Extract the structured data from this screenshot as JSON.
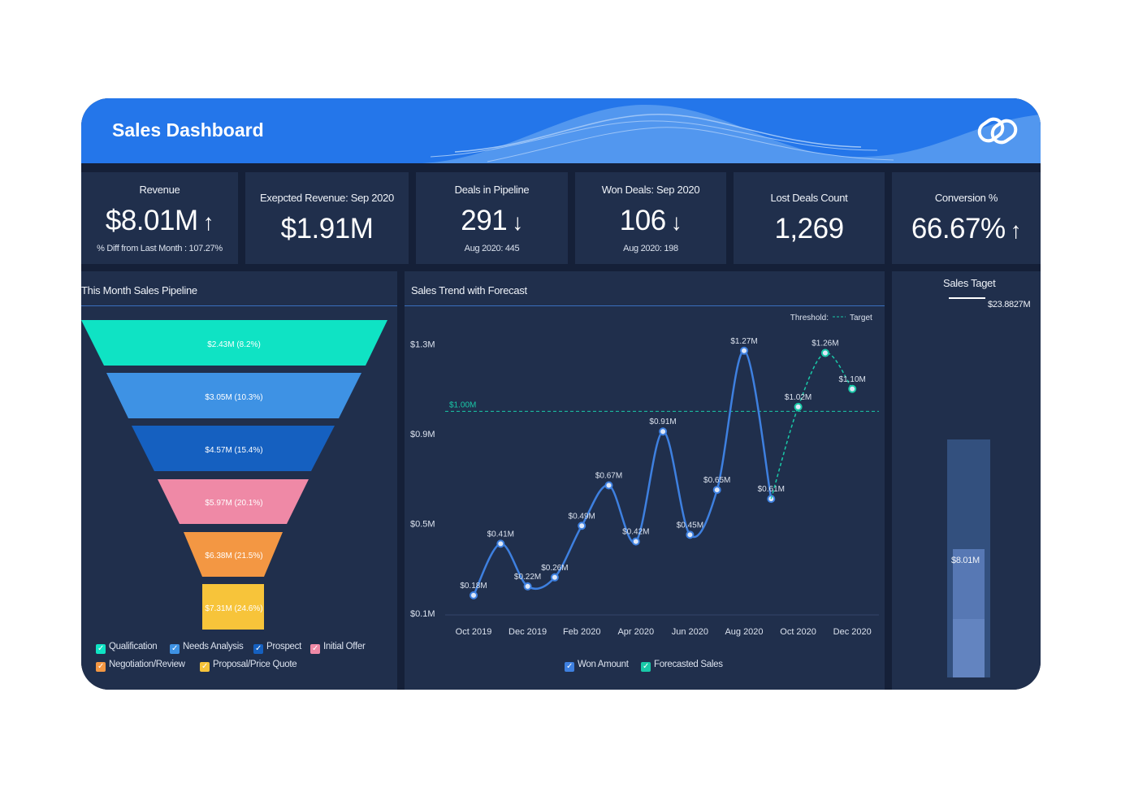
{
  "header": {
    "title": "Sales Dashboard",
    "logo_icon": "zoho-analytics-logo-icon"
  },
  "kpis": [
    {
      "label": "Revenue",
      "value": "$8.01M",
      "arrow": "↑",
      "sub": "% Diff from Last Month : 107.27%"
    },
    {
      "label": "Exepcted Revenue: Sep 2020",
      "value": "$1.91M"
    },
    {
      "label": "Deals in Pipeline",
      "value": "291",
      "arrow": "↓",
      "sub": "Aug 2020: 445"
    },
    {
      "label": "Won Deals: Sep 2020",
      "value": "106",
      "arrow": "↓",
      "sub": "Aug 2020: 198"
    },
    {
      "label": "Lost Deals Count",
      "value": "1,269"
    },
    {
      "label": "Conversion %",
      "value": "66.67%",
      "arrow": "↑"
    }
  ],
  "pipeline": {
    "title": "This Month Sales Pipeline",
    "stages": [
      {
        "name": "Qualification",
        "label": "$2.43M (8.2%)",
        "color": "#0fe3c4"
      },
      {
        "name": "Needs Analysis",
        "label": "$3.05M (10.3%)",
        "color": "#3e92e4"
      },
      {
        "name": "Prospect",
        "label": "$4.57M (15.4%)",
        "color": "#1560c0"
      },
      {
        "name": "Initial Offer",
        "label": "$5.97M (20.1%)",
        "color": "#ef89a6"
      },
      {
        "name": "Negotiation/Review",
        "label": "$6.38M (21.5%)",
        "color": "#f39743"
      },
      {
        "name": "Proposal/Price Quote",
        "label": "$7.31M (24.6%)",
        "color": "#f7c43a"
      }
    ]
  },
  "trend": {
    "title": "Sales Trend with Forecast",
    "threshold_label": "Threshold:",
    "target_label": "Target",
    "legend": [
      {
        "name": "Won Amount",
        "color": "#3e80e0"
      },
      {
        "name": "Forecasted Sales",
        "color": "#19c9a8"
      }
    ]
  },
  "target": {
    "title": "Sales Taget",
    "target_value": "$23.8827M",
    "current_value": "$8.01M",
    "target_num": 23.8827,
    "current_num": 8.01
  },
  "chart_data": {
    "type": "line",
    "title": "Sales Trend with Forecast",
    "x": [
      "Oct 2019",
      "Nov 2019",
      "Dec 2019",
      "Jan 2020",
      "Feb 2020",
      "Mar 2020",
      "Apr 2020",
      "May 2020",
      "Jun 2020",
      "Jul 2020",
      "Aug 2020",
      "Sep 2020",
      "Oct 2020",
      "Nov 2020",
      "Dec 2020"
    ],
    "xtick_labels": [
      "Oct 2019",
      "Dec 2019",
      "Feb 2020",
      "Apr 2020",
      "Jun 2020",
      "Aug 2020",
      "Oct 2020",
      "Dec 2020"
    ],
    "ytick_values": [
      0.1,
      0.5,
      0.9,
      1.3
    ],
    "ytick_labels": [
      "$0.1M",
      "$0.5M",
      "$0.9M",
      "$1.3M"
    ],
    "ylim": [
      0.1,
      1.3
    ],
    "threshold": {
      "value": 1.0,
      "label": "$1.00M"
    },
    "series": [
      {
        "name": "Won Amount",
        "values": [
          0.18,
          0.41,
          0.22,
          0.26,
          0.49,
          0.67,
          0.42,
          0.91,
          0.45,
          0.65,
          1.27,
          0.61,
          null,
          null,
          null
        ],
        "labels": [
          "$0.18M",
          "$0.41M",
          "$0.22M",
          "$0.26M",
          "$0.49M",
          "$0.67M",
          "$0.42M",
          "$0.91M",
          "$0.45M",
          "$0.65M",
          "$1.27M",
          "$0.61M",
          "",
          "",
          ""
        ]
      },
      {
        "name": "Forecasted Sales",
        "values": [
          null,
          null,
          null,
          null,
          null,
          null,
          null,
          null,
          null,
          null,
          null,
          0.61,
          1.02,
          1.26,
          1.1
        ],
        "labels": [
          "",
          "",
          "",
          "",
          "",
          "",
          "",
          "",
          "",
          "",
          "",
          "",
          "$1.02M",
          "$1.26M",
          "$1.10M"
        ]
      }
    ]
  }
}
